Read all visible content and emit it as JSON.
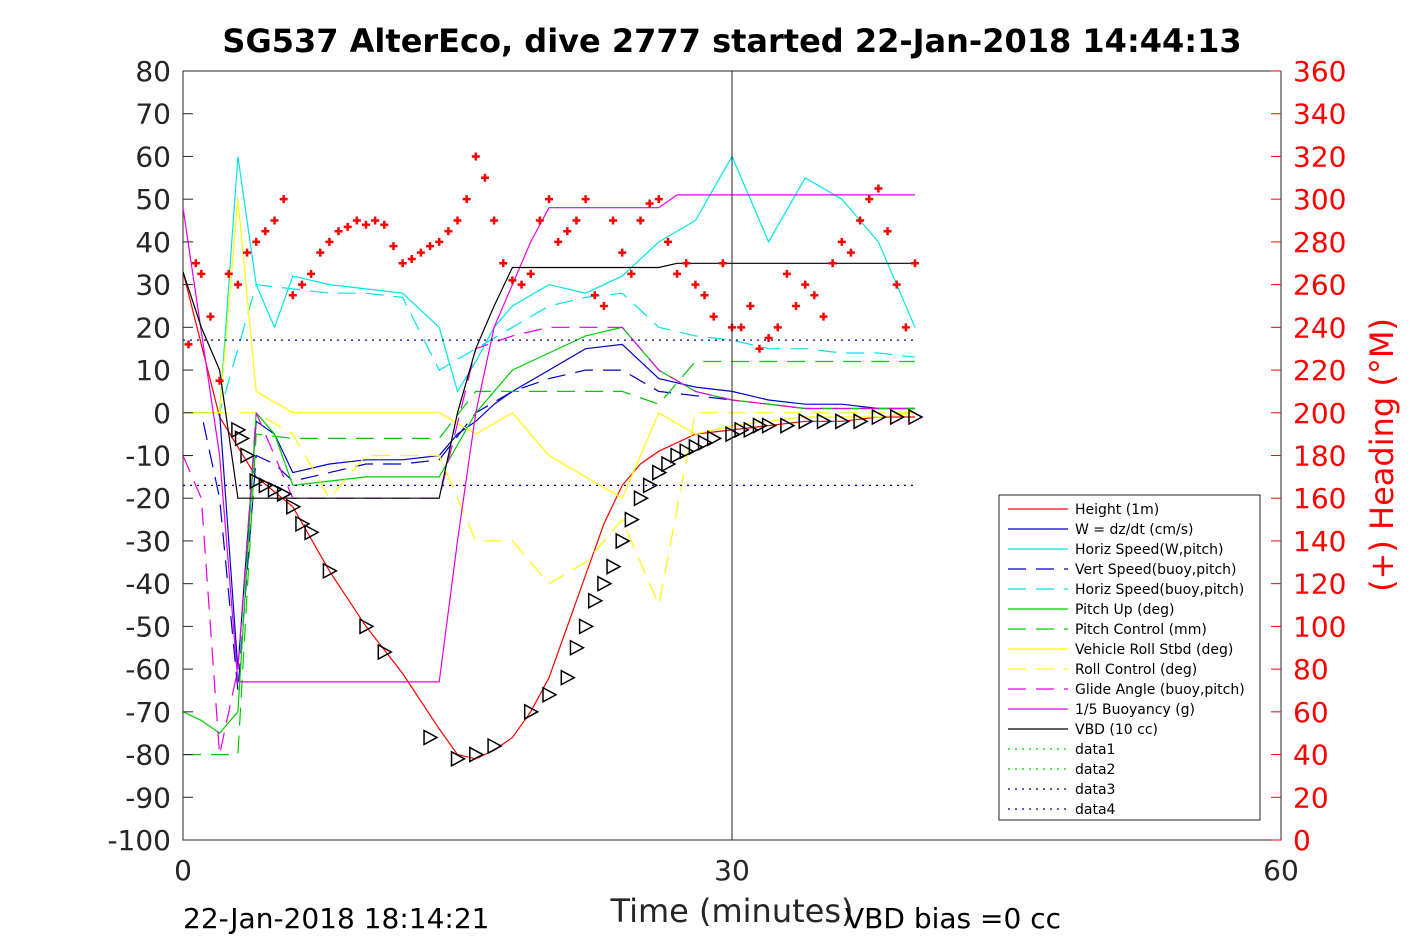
{
  "chart_data": {
    "type": "line",
    "title": "SG537 AlterEco, dive 2777 started 22-Jan-2018 14:44:13",
    "xlabel": "Time (minutes)",
    "ylabel_right": "(+) Heading (°M)",
    "xlim": [
      0,
      60
    ],
    "ylim_left": [
      -100,
      80
    ],
    "ylim_right": [
      0,
      360
    ],
    "x_ticks": [
      "0",
      "30",
      "60"
    ],
    "y_ticks_left": [
      "80",
      "70",
      "60",
      "50",
      "40",
      "30",
      "20",
      "10",
      "0",
      "-10",
      "-20",
      "-30",
      "-40",
      "-50",
      "-60",
      "-70",
      "-80",
      "-90",
      "-100"
    ],
    "y_ticks_right": [
      "360",
      "340",
      "320",
      "300",
      "280",
      "260",
      "240",
      "220",
      "200",
      "180",
      "160",
      "140",
      "120",
      "100",
      "80",
      "60",
      "40",
      "20",
      "0"
    ],
    "legend_position": "right",
    "footer_left": "22-Jan-2018 18:14:21",
    "footer_right": "VBD bias =0 cc",
    "series": [
      {
        "name": "Height (1m)",
        "color": "#ff0000",
        "style": "solid",
        "x": [
          0,
          2,
          4,
          6,
          8,
          10,
          12,
          14,
          15,
          16,
          17,
          18,
          19,
          20,
          21,
          22,
          23,
          24,
          25,
          26,
          27,
          28,
          30,
          32,
          34,
          36,
          38,
          40
        ],
        "y": [
          33,
          -1,
          -15,
          -22,
          -37,
          -50,
          -61,
          -74,
          -80,
          -81,
          -79,
          -76,
          -70,
          -62,
          -50,
          -38,
          -26,
          -17,
          -12,
          -9,
          -7,
          -5,
          -4,
          -3,
          -2,
          -2,
          -1,
          -1
        ]
      },
      {
        "name": "W = dz/dt (cm/s)",
        "color": "#0000cc",
        "style": "solid",
        "x": [
          0,
          1,
          2,
          3,
          4,
          5,
          6,
          8,
          10,
          12,
          14,
          15,
          16,
          17,
          18,
          20,
          22,
          24,
          26,
          28,
          30,
          32,
          34,
          36,
          38,
          40
        ],
        "y": [
          0,
          0,
          0,
          -60,
          -2,
          -5,
          -14,
          -12,
          -11,
          -11,
          -10,
          -5,
          -2,
          2,
          5,
          10,
          15,
          16,
          8,
          6,
          5,
          3,
          2,
          2,
          1,
          1
        ]
      },
      {
        "name": "Horiz Speed(W,pitch)",
        "color": "#00e5e5",
        "style": "solid",
        "x": [
          0,
          1,
          2,
          3,
          4,
          5,
          6,
          8,
          10,
          12,
          14,
          15,
          16,
          17,
          18,
          20,
          22,
          24,
          26,
          28,
          30,
          32,
          34,
          36,
          38,
          40
        ],
        "y": [
          0,
          0,
          0,
          60,
          30,
          20,
          32,
          30,
          29,
          28,
          20,
          5,
          12,
          20,
          25,
          30,
          28,
          32,
          40,
          45,
          60,
          40,
          55,
          50,
          40,
          20
        ]
      },
      {
        "name": "Vert Speed(buoy,pitch)",
        "color": "#0000cc",
        "style": "dashed",
        "x": [
          0,
          1,
          2,
          3,
          4,
          5,
          6,
          8,
          10,
          12,
          14,
          16,
          18,
          20,
          22,
          24,
          26,
          28,
          30,
          32,
          34,
          36,
          38,
          40
        ],
        "y": [
          0,
          0,
          -20,
          -65,
          -10,
          -12,
          -16,
          -14,
          -12,
          -12,
          -11,
          0,
          5,
          8,
          10,
          10,
          5,
          4,
          3,
          2,
          1,
          1,
          1,
          1
        ]
      },
      {
        "name": "Horiz Speed(buoy,pitch)",
        "color": "#00e5e5",
        "style": "dashed",
        "x": [
          0,
          2,
          4,
          6,
          8,
          10,
          12,
          14,
          16,
          18,
          20,
          22,
          24,
          26,
          28,
          30,
          32,
          34,
          36,
          38,
          40
        ],
        "y": [
          0,
          0,
          30,
          29,
          28,
          28,
          27,
          10,
          15,
          20,
          25,
          27,
          28,
          20,
          18,
          17,
          15,
          15,
          14,
          14,
          13
        ]
      },
      {
        "name": "Pitch Up (deg)",
        "color": "#00cc00",
        "style": "solid",
        "x": [
          0,
          1,
          2,
          3,
          4,
          5,
          6,
          8,
          10,
          12,
          14,
          16,
          18,
          20,
          22,
          24,
          26,
          28,
          30,
          32,
          34,
          36,
          38,
          40
        ],
        "y": [
          -70,
          -72,
          -75,
          -70,
          0,
          -5,
          -17,
          -16,
          -15,
          -15,
          -15,
          0,
          10,
          14,
          18,
          20,
          10,
          5,
          3,
          2,
          1,
          1,
          1,
          1
        ]
      },
      {
        "name": "Pitch Control (mm)",
        "color": "#00cc00",
        "style": "dashed",
        "x": [
          0,
          1,
          2,
          3,
          4,
          6,
          8,
          10,
          12,
          14,
          16,
          18,
          20,
          22,
          24,
          26,
          28,
          30,
          32,
          34,
          36,
          38,
          40
        ],
        "y": [
          -80,
          -80,
          -80,
          -80,
          -5,
          -6,
          -6,
          -6,
          -6,
          -6,
          5,
          5,
          5,
          5,
          5,
          2,
          12,
          12,
          12,
          12,
          12,
          12,
          12
        ]
      },
      {
        "name": "Vehicle Roll Stbd (deg)",
        "color": "#ffff00",
        "style": "solid",
        "x": [
          0,
          2,
          3,
          4,
          6,
          8,
          10,
          12,
          14,
          16,
          18,
          20,
          22,
          24,
          26,
          28,
          30,
          32,
          34,
          36,
          38,
          40
        ],
        "y": [
          0,
          0,
          50,
          5,
          0,
          0,
          0,
          0,
          0,
          -5,
          0,
          -10,
          -15,
          -20,
          0,
          -5,
          -3,
          -2,
          -1,
          -1,
          -1,
          0
        ]
      },
      {
        "name": "Roll Control (deg)",
        "color": "#ffff00",
        "style": "dashed",
        "x": [
          0,
          2,
          4,
          6,
          8,
          10,
          12,
          14,
          16,
          18,
          20,
          22,
          24,
          26,
          28,
          30,
          32,
          34,
          36,
          38,
          40
        ],
        "y": [
          0,
          0,
          0,
          -5,
          -20,
          -10,
          -10,
          -10,
          -30,
          -30,
          -40,
          -35,
          -25,
          -45,
          0,
          0,
          0,
          0,
          0,
          0,
          0
        ]
      },
      {
        "name": "Glide Angle (buoy,pitch)",
        "color": "#e600e6",
        "style": "dashed",
        "x": [
          0,
          1,
          2,
          3,
          4,
          6,
          8,
          10,
          12,
          14,
          16,
          18,
          20,
          22,
          24,
          26,
          28,
          30,
          32,
          34,
          36,
          38,
          40
        ],
        "y": [
          -10,
          -20,
          -80,
          -60,
          0,
          -20,
          -20,
          -20,
          -20,
          -20,
          15,
          18,
          20,
          20,
          20,
          10,
          5,
          3,
          2,
          1,
          1,
          1,
          1
        ]
      },
      {
        "name": "1/5 Buoyancy (g)",
        "color": "#e600e6",
        "style": "solid",
        "x": [
          0,
          2,
          3,
          4,
          6,
          8,
          10,
          12,
          14,
          15,
          16,
          17,
          18,
          19,
          20,
          22,
          24,
          26,
          27,
          28,
          30,
          32,
          34,
          36,
          38,
          40
        ],
        "y": [
          48,
          -10,
          -63,
          -63,
          -63,
          -63,
          -63,
          -63,
          -63,
          -30,
          0,
          20,
          30,
          40,
          48,
          48,
          48,
          48,
          51,
          51,
          51,
          51,
          51,
          51,
          51,
          51
        ]
      },
      {
        "name": "VBD (10 cc)",
        "color": "#000000",
        "style": "solid",
        "x": [
          0,
          1,
          2,
          3,
          4,
          6,
          8,
          10,
          12,
          14,
          15,
          16,
          17,
          18,
          19,
          20,
          22,
          24,
          26,
          27,
          28,
          30,
          32,
          34,
          36,
          38,
          40
        ],
        "y": [
          33,
          20,
          10,
          -20,
          -20,
          -20,
          -20,
          -20,
          -20,
          -20,
          0,
          15,
          25,
          34,
          34,
          34,
          34,
          34,
          34,
          35,
          35,
          35,
          35,
          35,
          35,
          35,
          35
        ]
      },
      {
        "name": "data1",
        "color": "#00cc00",
        "style": "dotted",
        "x": [],
        "y": []
      },
      {
        "name": "data2",
        "color": "#00cc00",
        "style": "dotted",
        "x": [],
        "y": []
      },
      {
        "name": "data3",
        "color": "#00008b",
        "style": "dotted",
        "x": [
          0,
          40
        ],
        "y": [
          17,
          17
        ]
      },
      {
        "name": "data4",
        "color": "#00008b",
        "style": "dotted",
        "x": [
          0,
          40
        ],
        "y": [
          -17,
          -17
        ]
      }
    ],
    "heading": {
      "color": "#ff0000",
      "marker": "+",
      "axis": "right",
      "x": [
        0.3,
        0.7,
        1,
        1.5,
        2,
        2.5,
        3,
        3.5,
        4,
        4.5,
        5,
        5.5,
        6,
        6.5,
        7,
        7.5,
        8,
        8.5,
        9,
        9.5,
        10,
        10.5,
        11,
        11.5,
        12,
        12.5,
        13,
        13.5,
        14,
        14.5,
        15,
        15.5,
        16,
        16.5,
        17,
        17.5,
        18,
        18.5,
        19,
        19.5,
        20,
        20.5,
        21,
        21.5,
        22,
        22.5,
        23,
        23.5,
        24,
        24.5,
        25,
        25.5,
        26,
        26.5,
        27,
        27.5,
        28,
        28.5,
        29,
        29.5,
        30,
        30.5,
        31,
        31.5,
        32,
        32.5,
        33,
        33.5,
        34,
        34.5,
        35,
        35.5,
        36,
        36.5,
        37,
        37.5,
        38,
        38.5,
        39,
        39.5,
        40
      ],
      "y": [
        232,
        270,
        265,
        245,
        215,
        265,
        260,
        275,
        280,
        285,
        290,
        300,
        255,
        260,
        265,
        275,
        280,
        285,
        287,
        290,
        288,
        290,
        288,
        278,
        270,
        272,
        275,
        278,
        280,
        285,
        290,
        300,
        320,
        310,
        290,
        270,
        262,
        260,
        265,
        290,
        300,
        280,
        285,
        290,
        300,
        255,
        250,
        290,
        275,
        265,
        290,
        298,
        300,
        280,
        265,
        270,
        260,
        255,
        245,
        270,
        240,
        240,
        250,
        230,
        235,
        240,
        265,
        250,
        260,
        255,
        245,
        270,
        280,
        275,
        290,
        300,
        305,
        285,
        260,
        240,
        270
      ]
    },
    "markers": {
      "color": "#000000",
      "marker": "triangle",
      "x": [
        3,
        3.2,
        3.5,
        4,
        4.5,
        5,
        5.5,
        6,
        6.5,
        7,
        8,
        10,
        11,
        13.5,
        15,
        16,
        17,
        19,
        20,
        21,
        21.5,
        22,
        22.5,
        23,
        23.5,
        24,
        24.5,
        25,
        25.5,
        26,
        26.5,
        27,
        27.5,
        28,
        28.5,
        29,
        30,
        30.5,
        31,
        31.5,
        32,
        33,
        34,
        35,
        36,
        37,
        38,
        39,
        40
      ],
      "y": [
        -4,
        -6,
        -10,
        -16,
        -17,
        -18,
        -19,
        -22,
        -26,
        -28,
        -37,
        -50,
        -56,
        -76,
        -81,
        -80,
        -78,
        -70,
        -66,
        -62,
        -55,
        -50,
        -44,
        -40,
        -36,
        -30,
        -25,
        -20,
        -17,
        -14,
        -12,
        -10,
        -9,
        -8,
        -7,
        -6,
        -5,
        -4,
        -4,
        -3,
        -3,
        -3,
        -2,
        -2,
        -2,
        -2,
        -1,
        -1,
        -1
      ]
    }
  }
}
